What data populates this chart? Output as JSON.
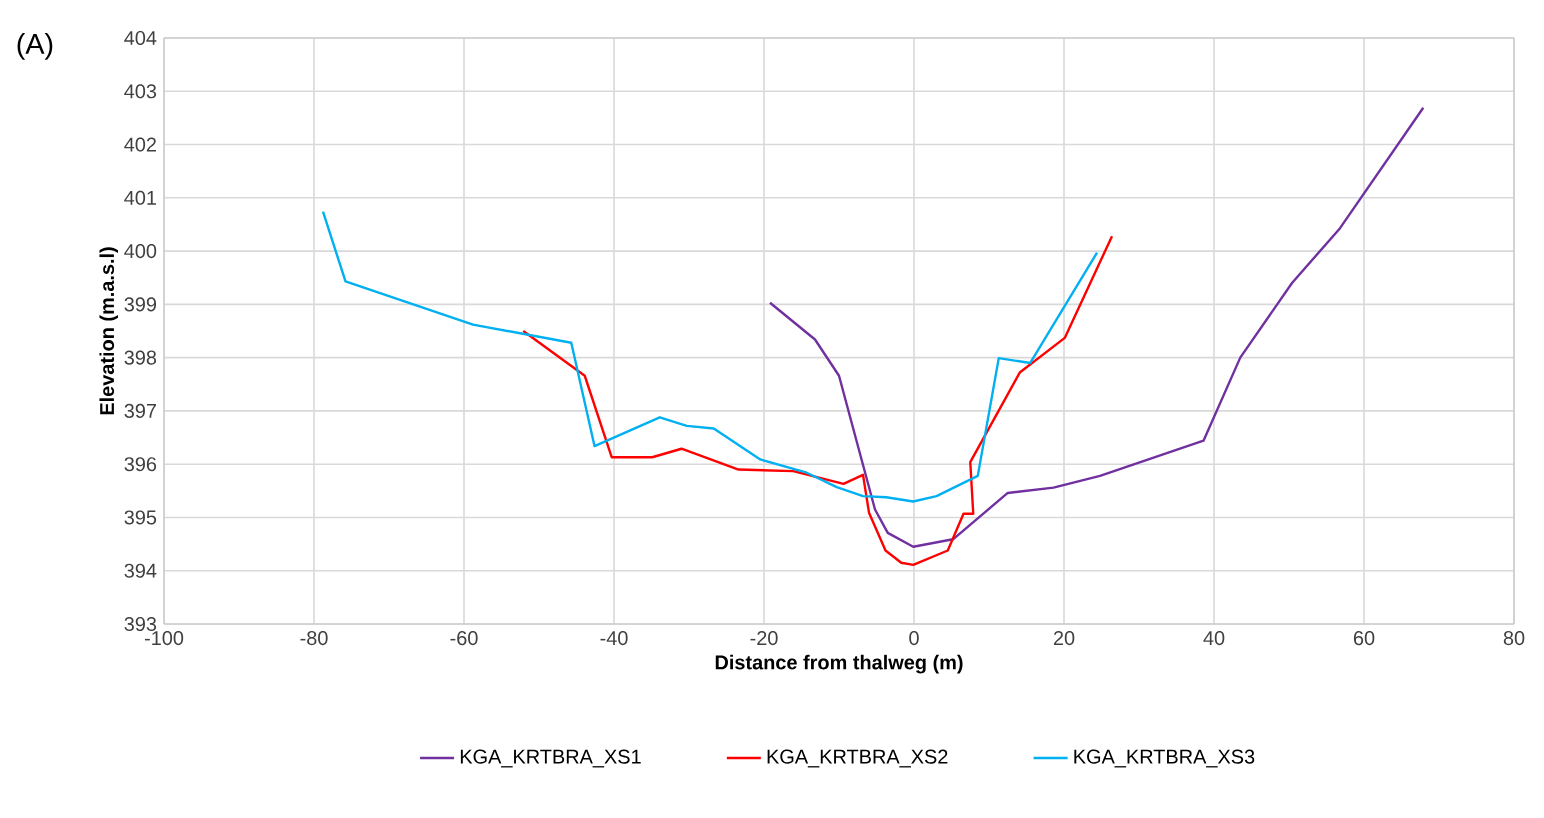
{
  "chart_data": {
    "type": "line",
    "title": "(A)",
    "xlabel": "Distance from thalweg (m)",
    "ylabel": "Elevation (m.a.s.l)",
    "xlim": [
      -100,
      80
    ],
    "xticks": [
      -100,
      -80,
      -60,
      -40,
      -20,
      0,
      20,
      40,
      60,
      80
    ],
    "ylim": [
      393,
      404
    ],
    "yticks": [
      393,
      394,
      395,
      396,
      397,
      398,
      399,
      400,
      401,
      402,
      403,
      404
    ],
    "grid": true,
    "legend": "bottom",
    "marker": "none",
    "line_style": "solid",
    "series": [
      {
        "name": "KGA_KRTBRA_XS1",
        "color": "#7030a0",
        "x": [
          -19.2,
          -13.2,
          -10.0,
          -5.2,
          -3.5,
          -0.1,
          5.2,
          12.5,
          18.6,
          24.8,
          38.6,
          43.5,
          50.4,
          56.8,
          67.9
        ],
        "values": [
          399.03,
          398.34,
          397.66,
          395.15,
          394.71,
          394.45,
          394.59,
          395.46,
          395.56,
          395.78,
          396.44,
          398.0,
          399.4,
          400.43,
          402.69
        ]
      },
      {
        "name": "KGA_KRTBRA_XS2",
        "color": "#ff0000",
        "x": [
          -52.1,
          -43.9,
          -40.3,
          -34.9,
          -31.0,
          -23.4,
          -16.1,
          -9.4,
          -6.8,
          -6.0,
          -3.8,
          -1.7,
          -0.1,
          4.5,
          6.6,
          7.9,
          7.5,
          14.1,
          20.1,
          26.4
        ],
        "values": [
          398.5,
          397.66,
          396.13,
          396.13,
          396.29,
          395.9,
          395.87,
          395.63,
          395.8,
          395.09,
          394.38,
          394.15,
          394.11,
          394.38,
          395.07,
          395.07,
          396.04,
          397.72,
          398.37,
          400.28
        ]
      },
      {
        "name": "KGA_KRTBRA_XS3",
        "color": "#00b0f0",
        "x": [
          -78.8,
          -75.8,
          -58.8,
          -45.7,
          -42.6,
          -33.9,
          -30.3,
          -26.7,
          -20.5,
          -14.3,
          -10.3,
          -6.8,
          -3.7,
          -0.1,
          3.0,
          8.5,
          11.3,
          15.5,
          24.4
        ],
        "values": [
          400.74,
          399.43,
          398.62,
          398.28,
          396.34,
          396.88,
          396.72,
          396.67,
          396.09,
          395.84,
          395.57,
          395.4,
          395.38,
          395.3,
          395.4,
          395.78,
          397.99,
          397.9,
          399.97
        ]
      }
    ]
  }
}
